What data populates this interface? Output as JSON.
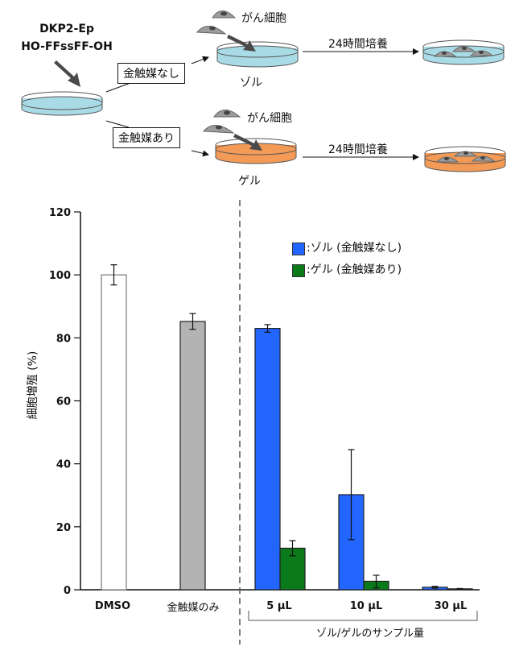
{
  "scheme": {
    "reagent_line1": "DKP2-Ep",
    "reagent_line2": "HO-FFssFF-OH",
    "branch_no_catalyst": "金触媒なし",
    "branch_with_catalyst": "金触媒あり",
    "cancer_cell_label_top": "がん細胞",
    "cancer_cell_label_bottom": "がん細胞",
    "sol_label": "ゾル",
    "gel_label": "ゲル",
    "culture_label_top": "24時間培養",
    "culture_label_bottom": "24時間培養",
    "colors": {
      "sol": "#a9dbe6",
      "gel": "#f39a57",
      "cell": "#9c9c9c",
      "arrow": "#4a4a4a"
    }
  },
  "chart_data": {
    "type": "bar",
    "title": "",
    "ylabel": "細胞増殖 (%)",
    "xlabel": "ゾル/ゲルのサンプル量",
    "ylim": [
      0,
      120
    ],
    "yticks": [
      0,
      20,
      40,
      60,
      80,
      100,
      120
    ],
    "grid": false,
    "legend_position": "upper right",
    "legend": [
      {
        "label": ":ゾル (金触媒なし)",
        "color": "#2266ff"
      },
      {
        "label": ":ゲル (金触媒あり)",
        "color": "#0a7a1a"
      }
    ],
    "controls": [
      {
        "category": "DMSO",
        "value": 100,
        "error_low": 96.8,
        "error_high": 103.2,
        "color": "#ffffff"
      },
      {
        "category": "金触媒のみ",
        "value": 85.2,
        "error_low": 82.7,
        "error_high": 87.7,
        "color": "#b3b3b3"
      }
    ],
    "categories": [
      "5 µL",
      "10 µL",
      "30 µL"
    ],
    "series": [
      {
        "name": "ゾル (金触媒なし)",
        "color": "#2266ff",
        "values": [
          83.0,
          30.2,
          0.8
        ],
        "error_low": [
          81.8,
          15.9,
          0.5
        ],
        "error_high": [
          84.2,
          44.5,
          1.1
        ]
      },
      {
        "name": "ゲル (金触媒あり)",
        "color": "#0a7a1a",
        "values": [
          13.2,
          2.7,
          0.3
        ],
        "error_low": [
          10.8,
          0.6,
          0.2
        ],
        "error_high": [
          15.6,
          4.6,
          0.4
        ]
      }
    ],
    "control_labels": [
      "DMSO",
      "金触媒のみ"
    ],
    "divider": "dashed vertical line separating controls from samples"
  }
}
